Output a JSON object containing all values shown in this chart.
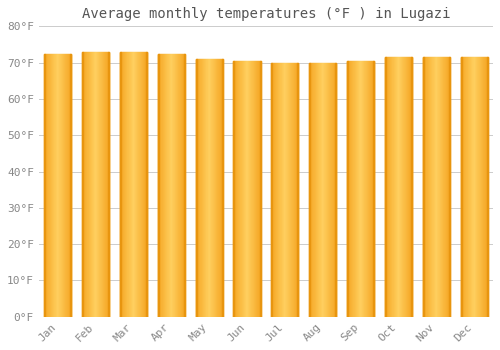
{
  "title": "Average monthly temperatures (°F ) in Lugazi",
  "months": [
    "Jan",
    "Feb",
    "Mar",
    "Apr",
    "May",
    "Jun",
    "Jul",
    "Aug",
    "Sep",
    "Oct",
    "Nov",
    "Dec"
  ],
  "values": [
    72.5,
    73.0,
    73.0,
    72.5,
    71.0,
    70.5,
    70.0,
    70.0,
    70.5,
    71.5,
    71.5,
    71.5
  ],
  "bar_color_left": "#F5A623",
  "bar_color_center": "#FFD060",
  "bar_color_right": "#F5A623",
  "background_color": "#FFFFFF",
  "plot_bg_color": "#FFFFFF",
  "grid_color": "#CCCCCC",
  "ylim": [
    0,
    80
  ],
  "yticks": [
    0,
    10,
    20,
    30,
    40,
    50,
    60,
    70,
    80
  ],
  "ytick_labels": [
    "0°F",
    "10°F",
    "20°F",
    "30°F",
    "40°F",
    "50°F",
    "60°F",
    "70°F",
    "80°F"
  ],
  "title_fontsize": 10,
  "tick_fontsize": 8,
  "font_family": "monospace",
  "tick_color": "#888888",
  "title_color": "#555555"
}
